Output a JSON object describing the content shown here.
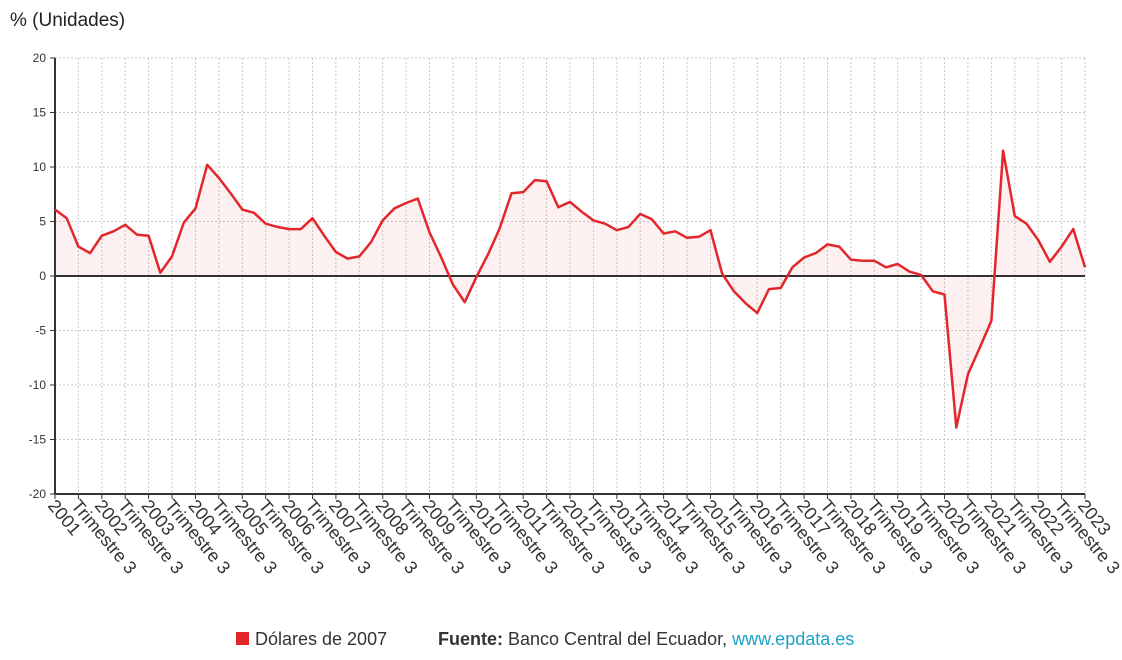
{
  "chart_data": {
    "type": "line",
    "title": "% (Unidades)",
    "categories": [
      "2001",
      null,
      "Trimestre 3",
      null,
      "2002",
      null,
      "Trimestre 3",
      null,
      "2003",
      null,
      "Trimestre 3",
      null,
      "2004",
      null,
      "Trimestre 3",
      null,
      "2005",
      null,
      "Trimestre 3",
      null,
      "2006",
      null,
      "Trimestre 3",
      null,
      "2007",
      null,
      "Trimestre 3",
      null,
      "2008",
      null,
      "Trimestre 3",
      null,
      "2009",
      null,
      "Trimestre 3",
      null,
      "2010",
      null,
      "Trimestre 3",
      null,
      "2011",
      null,
      "Trimestre 3",
      null,
      "2012",
      null,
      "Trimestre 3",
      null,
      "2013",
      null,
      "Trimestre 3",
      null,
      "2014",
      null,
      "Trimestre 3",
      null,
      "2015",
      null,
      "Trimestre 3",
      null,
      "2016",
      null,
      "Trimestre 3",
      null,
      "2017",
      null,
      "Trimestre 3",
      null,
      "2018",
      null,
      "Trimestre 3",
      null,
      "2019",
      null,
      "Trimestre 3",
      null,
      "2020",
      null,
      "Trimestre 3",
      null,
      "2021",
      null,
      "Trimestre 3",
      null,
      "2022",
      null,
      "Trimestre 3",
      null,
      "2023"
    ],
    "series": [
      {
        "name": "Dólares de 2007",
        "color": "#e2262c",
        "values": [
          6.1,
          5.3,
          2.7,
          2.1,
          3.7,
          4.1,
          4.7,
          3.8,
          3.7,
          0.3,
          1.8,
          4.9,
          6.2,
          10.2,
          9.0,
          7.6,
          6.1,
          5.8,
          4.8,
          4.5,
          4.3,
          4.3,
          5.3,
          3.7,
          2.2,
          1.6,
          1.8,
          3.1,
          5.1,
          6.2,
          6.7,
          7.1,
          4.0,
          1.7,
          -0.8,
          -2.4,
          -0.1,
          2.0,
          4.4,
          7.6,
          7.7,
          8.8,
          8.7,
          6.3,
          6.8,
          5.9,
          5.1,
          4.8,
          4.2,
          4.5,
          5.7,
          5.2,
          3.9,
          4.1,
          3.5,
          3.6,
          4.2,
          0.2,
          -1.4,
          -2.5,
          -3.4,
          -1.2,
          -1.1,
          0.8,
          1.7,
          2.1,
          2.9,
          2.7,
          1.5,
          1.4,
          1.4,
          0.8,
          1.1,
          0.4,
          0.1,
          -1.4,
          -1.7,
          -13.9,
          -9.0,
          -6.6,
          -4.1,
          11.5,
          5.5,
          4.8,
          3.3,
          1.3,
          2.7,
          4.3,
          0.8
        ]
      }
    ],
    "ylim": [
      -20,
      20
    ],
    "yticks": [
      -20,
      -15,
      -10,
      -5,
      0,
      5,
      10,
      15,
      20
    ],
    "grid": true,
    "source": {
      "label": "Fuente:",
      "text": "Banco Central del Ecuador,",
      "link": "www.epdata.es"
    }
  }
}
